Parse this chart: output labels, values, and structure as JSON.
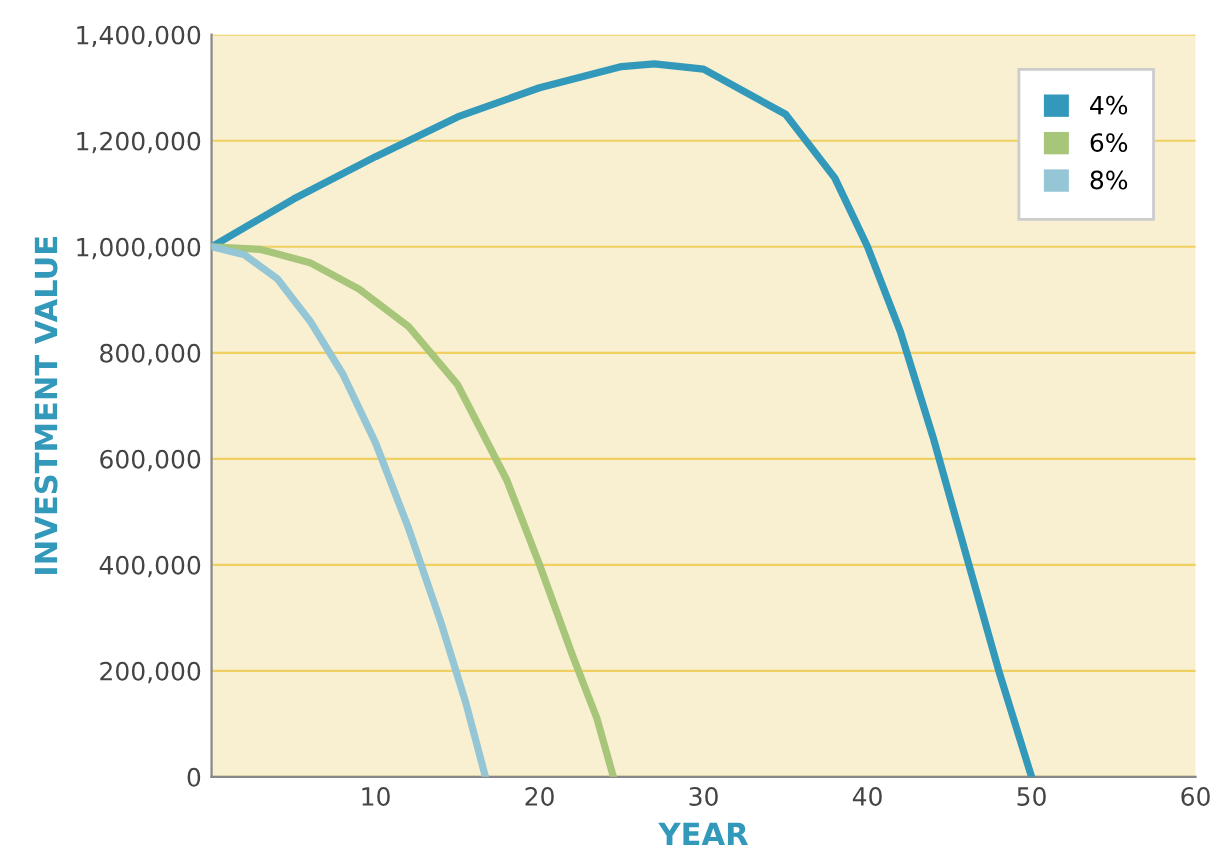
{
  "chart_data": {
    "type": "line",
    "xlabel": "YEAR",
    "ylabel": "INVESTMENT VALUE",
    "series": [
      {
        "name": "4%",
        "color": "#3399bb",
        "x": [
          0,
          5,
          10,
          15,
          20,
          25,
          27,
          30,
          35,
          38,
          40,
          42,
          44,
          46,
          48,
          50
        ],
        "values": [
          1000000,
          1090000,
          1170000,
          1245000,
          1300000,
          1340000,
          1345000,
          1335000,
          1250000,
          1130000,
          1000000,
          840000,
          640000,
          420000,
          200000,
          0
        ]
      },
      {
        "name": "6%",
        "color": "#a8c67a",
        "x": [
          0,
          3,
          6,
          9,
          12,
          15,
          18,
          20,
          22,
          23.5,
          24.5
        ],
        "values": [
          1000000,
          995000,
          970000,
          920000,
          850000,
          740000,
          560000,
          400000,
          230000,
          110000,
          0
        ]
      },
      {
        "name": "8%",
        "color": "#94c6d6",
        "x": [
          0,
          2,
          4,
          6,
          8,
          10,
          12,
          14,
          15.5,
          16.7
        ],
        "values": [
          1000000,
          985000,
          940000,
          860000,
          760000,
          630000,
          470000,
          290000,
          140000,
          0
        ]
      }
    ],
    "xlim": [
      0,
      60
    ],
    "xticks": [
      {
        "value": 0,
        "label": null
      },
      10,
      20,
      30,
      40,
      50,
      60
    ],
    "ylim": [
      0,
      1400000
    ],
    "yticks": [
      {
        "value": 0,
        "label": "0"
      },
      {
        "value": 200000,
        "label": "200,000"
      },
      {
        "value": 400000,
        "label": "400,000"
      },
      {
        "value": 600000,
        "label": "600,000"
      },
      {
        "value": 800000,
        "label": "800,000"
      },
      {
        "value": 1000000,
        "label": "1,000,000"
      },
      {
        "value": 1200000,
        "label": "1,200,000"
      },
      {
        "value": 1400000,
        "label": "1,400,000"
      }
    ],
    "grid": "y",
    "legend": "top right",
    "marker": "none",
    "line_style": "solid"
  }
}
